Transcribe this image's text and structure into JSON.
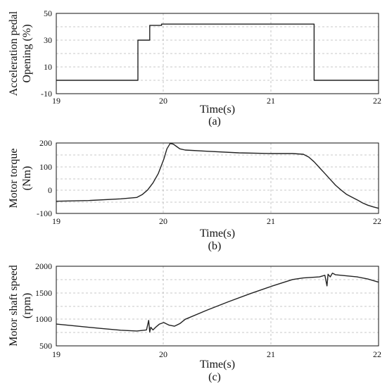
{
  "chart_data": [
    {
      "type": "line",
      "panel_label": "(a)",
      "xlabel": "Time(s)",
      "ylabel_lines": [
        "Acceleration pedal",
        "Opening (%)"
      ],
      "xlim": [
        19,
        22
      ],
      "ylim": [
        -10,
        50
      ],
      "xticks": [
        19,
        20,
        21,
        22
      ],
      "yticks": [
        -10,
        10,
        30,
        50
      ],
      "grid": true,
      "series": [
        {
          "x": [
            19.0,
            19.76,
            19.76,
            19.87,
            19.87,
            19.98,
            19.98,
            21.4,
            21.4,
            22.0
          ],
          "y": [
            0,
            0,
            30,
            30,
            41,
            41,
            42,
            42,
            0,
            0
          ]
        }
      ]
    },
    {
      "type": "line",
      "panel_label": "(b)",
      "xlabel": "Time(s)",
      "ylabel_lines": [
        "Motor torque",
        "(Nm)"
      ],
      "xlim": [
        19,
        22
      ],
      "ylim": [
        -100,
        200
      ],
      "xticks": [
        19,
        20,
        21,
        22
      ],
      "yticks": [
        -100,
        0,
        100,
        200
      ],
      "grid": true,
      "series": [
        {
          "x": [
            19.0,
            19.3,
            19.6,
            19.75,
            19.8,
            19.85,
            19.9,
            19.95,
            20.0,
            20.03,
            20.06,
            20.09,
            20.12,
            20.15,
            20.2,
            20.4,
            20.7,
            21.0,
            21.2,
            21.3,
            21.35,
            21.4,
            21.45,
            21.5,
            21.55,
            21.6,
            21.65,
            21.7,
            21.75,
            21.8,
            21.85,
            21.9,
            21.95,
            22.0
          ],
          "y": [
            -48,
            -45,
            -38,
            -32,
            -20,
            0,
            30,
            70,
            130,
            175,
            198,
            195,
            185,
            175,
            170,
            165,
            158,
            155,
            155,
            152,
            140,
            120,
            95,
            70,
            45,
            20,
            0,
            -18,
            -30,
            -42,
            -55,
            -65,
            -72,
            -78
          ]
        }
      ]
    },
    {
      "type": "line",
      "panel_label": "(c)",
      "xlabel": "Time(s)",
      "ylabel_lines": [
        "Motor shaft speed",
        "(rpm)"
      ],
      "xlim": [
        19,
        22
      ],
      "ylim": [
        500,
        2000
      ],
      "xticks": [
        19,
        20,
        21,
        22
      ],
      "yticks": [
        500,
        1000,
        1500,
        2000
      ],
      "grid": true,
      "series": [
        {
          "x": [
            19.0,
            19.2,
            19.4,
            19.6,
            19.75,
            19.84,
            19.86,
            19.87,
            19.88,
            19.9,
            19.93,
            19.96,
            20.0,
            20.05,
            20.1,
            20.15,
            20.2,
            20.4,
            20.6,
            20.8,
            21.0,
            21.2,
            21.3,
            21.45,
            21.5,
            21.52,
            21.53,
            21.55,
            21.57,
            21.6,
            21.7,
            21.8,
            21.9,
            22.0
          ],
          "y": [
            910,
            870,
            830,
            795,
            780,
            800,
            980,
            760,
            850,
            800,
            860,
            910,
            940,
            890,
            870,
            920,
            1000,
            1170,
            1330,
            1480,
            1620,
            1750,
            1780,
            1800,
            1830,
            1630,
            1850,
            1800,
            1870,
            1840,
            1820,
            1800,
            1760,
            1700
          ]
        }
      ]
    }
  ]
}
